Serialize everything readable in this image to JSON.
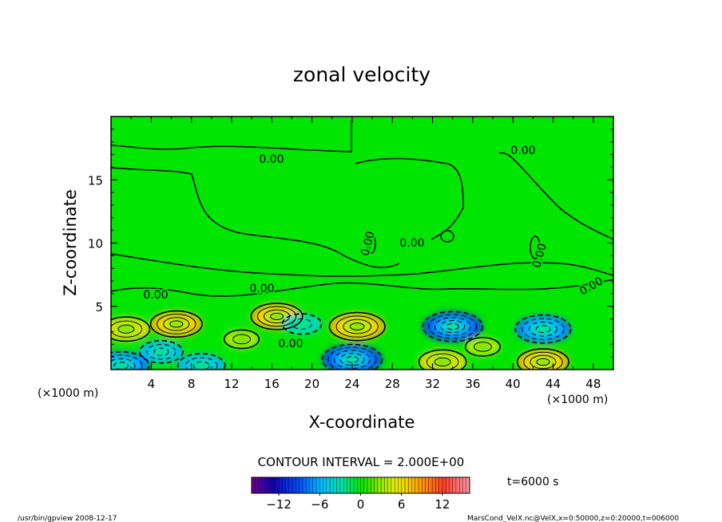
{
  "chart_data": {
    "type": "heatmap",
    "title": "zonal velocity",
    "xlabel": "X-coordinate",
    "ylabel": "Z-coordinate",
    "x_unit": "(×1000 m)",
    "x_unit_right": "(×1000 m)",
    "xlim": [
      0,
      50
    ],
    "ylim": [
      0,
      20
    ],
    "x_ticks": [
      4,
      8,
      12,
      16,
      20,
      24,
      28,
      32,
      36,
      40,
      44,
      48
    ],
    "y_ticks": [
      5,
      10,
      15
    ],
    "contour_labels": [
      "0.00",
      "0.00",
      "0.00",
      "0.00",
      "0.00",
      "0.00",
      "0.00",
      "0.00",
      "0.00"
    ],
    "contour_interval_text": "CONTOUR INTERVAL = 2.000E+00",
    "colorbar": {
      "min": -16,
      "max": 16,
      "ticks": [
        -12,
        -6,
        0,
        6,
        12
      ],
      "tick_labels": [
        "−12",
        "−6",
        "0",
        "6",
        "12"
      ]
    },
    "time_label": "t=6000 s",
    "features": [
      {
        "x": 1.5,
        "z": 3.2,
        "value": 6
      },
      {
        "x": 6.5,
        "z": 3.6,
        "value": 7
      },
      {
        "x": 16.5,
        "z": 4.2,
        "value": 7
      },
      {
        "x": 24.5,
        "z": 3.4,
        "value": 8
      },
      {
        "x": 33,
        "z": 0.6,
        "value": 6
      },
      {
        "x": 43,
        "z": 0.6,
        "value": 7
      },
      {
        "x": 1,
        "z": 0.3,
        "value": -8
      },
      {
        "x": 5,
        "z": 1.4,
        "value": -5
      },
      {
        "x": 9,
        "z": 0.3,
        "value": -6
      },
      {
        "x": 19,
        "z": 3.6,
        "value": -4
      },
      {
        "x": 24,
        "z": 0.8,
        "value": -9
      },
      {
        "x": 34,
        "z": 3.4,
        "value": -9
      },
      {
        "x": 43,
        "z": 3.2,
        "value": -8
      },
      {
        "x": 13,
        "z": 2.4,
        "value": 3
      },
      {
        "x": 37,
        "z": 1.8,
        "value": 3
      }
    ]
  },
  "footer": {
    "left": "/usr/bin/gpview   2008-12-17",
    "right": "MarsCond_VelX.nc@VelX,x=0:50000,z=0:20000,t=006000"
  }
}
